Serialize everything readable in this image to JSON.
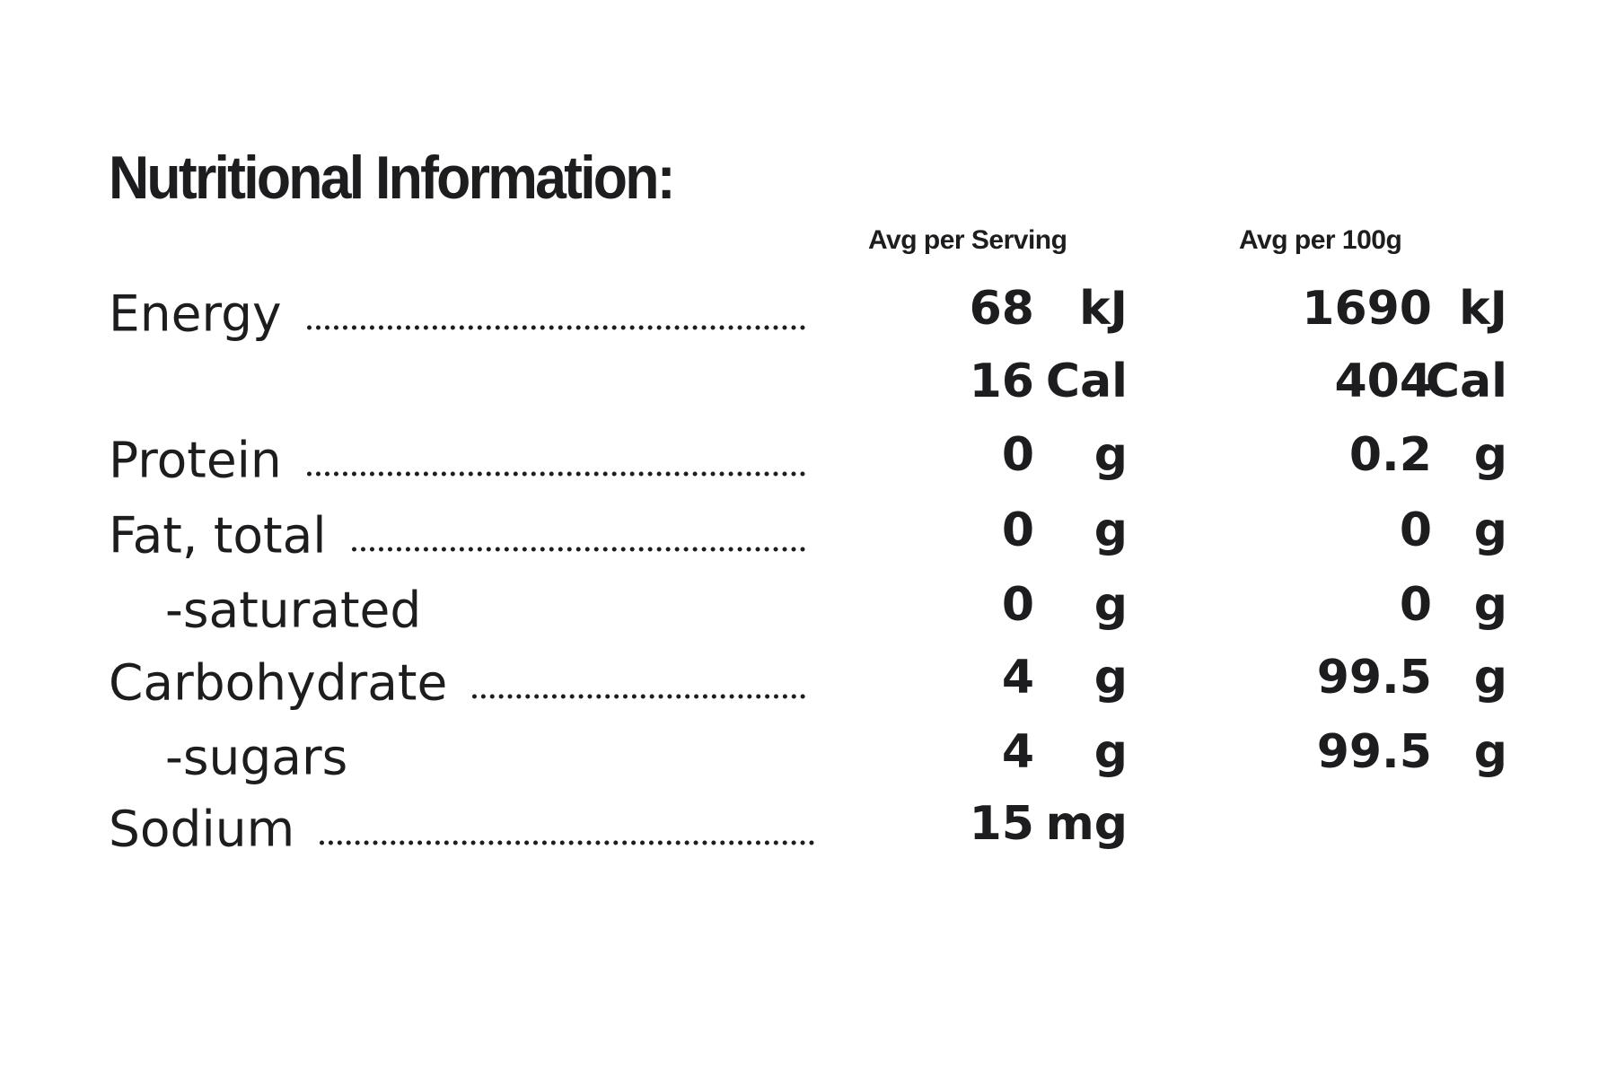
{
  "title": "Nutritional Information:",
  "table": {
    "headers": [
      "Avg per Serving",
      "Avg per 100g"
    ],
    "rows": [
      {
        "label": "Energy",
        "dotted": true,
        "serving": {
          "value": 68,
          "unit": "kJ"
        },
        "per100g": {
          "value": 1690,
          "unit": "kJ"
        }
      },
      {
        "label": null,
        "serving": {
          "value": 16,
          "unit": "Cal"
        },
        "per100g": {
          "value": 404,
          "unit": "Cal"
        }
      },
      {
        "label": "Protein",
        "dotted": true,
        "serving": {
          "value": 0,
          "unit": "g"
        },
        "per100g": {
          "value": 0.2,
          "unit": "g"
        }
      },
      {
        "label": "Fat, total",
        "dotted": true,
        "serving": {
          "value": 0,
          "unit": "g"
        },
        "per100g": {
          "value": 0,
          "unit": "g"
        }
      },
      {
        "label": "-saturated",
        "indent": true,
        "serving": {
          "value": 0,
          "unit": "g"
        },
        "per100g": {
          "value": 0,
          "unit": "g"
        }
      },
      {
        "label": "Carbohydrate",
        "dotted": true,
        "serving": {
          "value": 4,
          "unit": "g"
        },
        "per100g": {
          "value": 99.5,
          "unit": "g"
        }
      },
      {
        "label": "-sugars",
        "indent": true,
        "serving": {
          "value": 4,
          "unit": "g"
        },
        "per100g": {
          "value": 99.5,
          "unit": "g"
        }
      },
      {
        "label": "Sodium",
        "dotted": true,
        "serving": {
          "value": 15,
          "unit": "mg"
        },
        "per100g": null
      }
    ]
  }
}
